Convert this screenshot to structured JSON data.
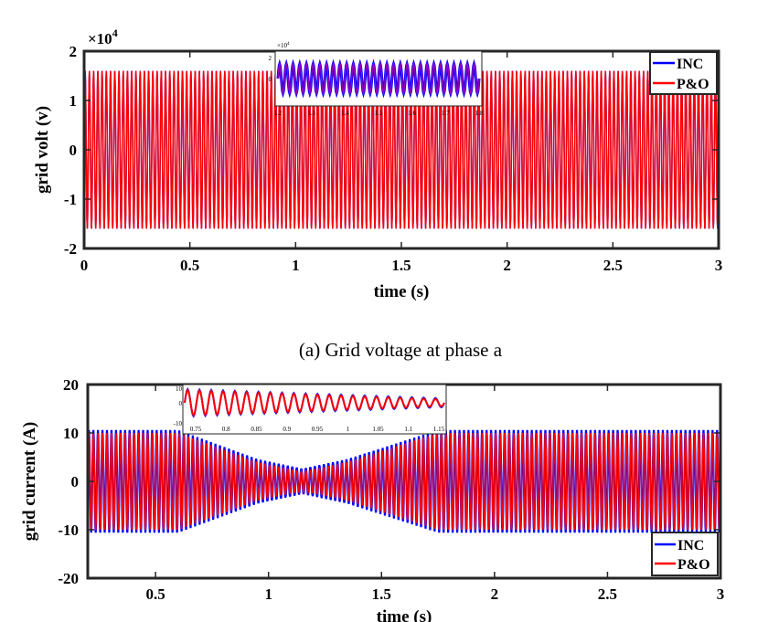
{
  "chart_data": [
    {
      "type": "line",
      "caption": "(a) Grid voltage at phase a",
      "xlabel": "time (s)",
      "ylabel": "grid volt (v)",
      "exponent": "×10^4",
      "xlim": [
        0,
        3
      ],
      "ylim": [
        -2,
        2
      ],
      "xticks": [
        "0",
        "0.5",
        "1",
        "1.5",
        "2",
        "2.5",
        "3"
      ],
      "yticks": [
        "2",
        "1",
        "0",
        "-1",
        "-2"
      ],
      "legend_position": "top-right",
      "series": [
        {
          "name": "INC",
          "color": "#0000ff",
          "amplitude": 1.6,
          "frequency_hz": 50
        },
        {
          "name": "P&O",
          "color": "#ff0000",
          "amplitude": 1.6,
          "frequency_hz": 50
        }
      ],
      "inset": {
        "xticks": [
          "1.2",
          "1.3",
          "1.4",
          "1.5",
          "1.6",
          "1.7",
          "1.8"
        ],
        "yticks": [
          "2",
          "0"
        ],
        "exponent": "×10^4"
      }
    },
    {
      "type": "line",
      "xlabel": "time (s)",
      "ylabel": "grid current (A)",
      "xlim": [
        0.2,
        3
      ],
      "ylim": [
        -20,
        20
      ],
      "xticks": [
        "0.5",
        "1",
        "1.5",
        "2",
        "2.5",
        "3"
      ],
      "yticks": [
        "20",
        "10",
        "0",
        "-10",
        "-20"
      ],
      "legend_position": "bottom-right",
      "series": [
        {
          "name": "INC",
          "color": "#0000ff"
        },
        {
          "name": "P&O",
          "color": "#ff0000"
        }
      ],
      "envelope": {
        "t": [
          0.2,
          0.6,
          0.95,
          1.15,
          1.35,
          1.75,
          3.0
        ],
        "amplitude": [
          10,
          10,
          4,
          2,
          4,
          10,
          10
        ]
      },
      "inset": {
        "xticks": [
          "0.75",
          "0.8",
          "0.85",
          "0.9",
          "0.95",
          "1",
          "1.05",
          "1.1",
          "1.15"
        ],
        "yticks": [
          "10",
          "0",
          "-10"
        ]
      }
    }
  ]
}
